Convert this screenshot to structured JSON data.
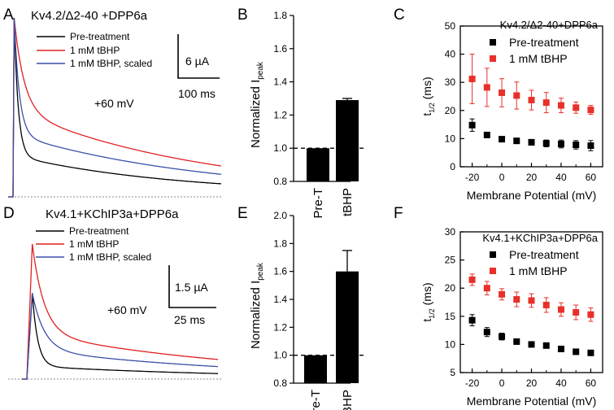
{
  "panels": {
    "A": {
      "letter": "A",
      "title": "Kv4.2/Δ2-40 +DPP6a",
      "voltage": "+60 mV",
      "scale_y": "6 µA",
      "scale_x": "100 ms"
    },
    "B": {
      "letter": "B"
    },
    "C": {
      "letter": "C"
    },
    "D": {
      "letter": "D",
      "title": "Kv4.1+KChIP3a+DPP6a",
      "voltage": "+60 mV",
      "scale_y": "1.5 µA",
      "scale_x": "25 ms"
    },
    "E": {
      "letter": "E"
    },
    "F": {
      "letter": "F"
    }
  },
  "legend_traces": [
    "Pre-treatment",
    "1 mM tBHP",
    "1 mM tBHP, scaled"
  ],
  "colors": {
    "pre": "#000000",
    "tbhp": "#e02020",
    "scaled": "#3a4fa8",
    "red_marker": "#e8302a"
  },
  "chart_data": [
    {
      "panel": "A",
      "type": "line",
      "series": [
        {
          "name": "Pre-treatment",
          "color": "#000000",
          "peak": 24,
          "fast_tau": 7,
          "fast_frac": 0.78,
          "slow_tau": 280,
          "base": 0.3
        },
        {
          "name": "1 mM tBHP",
          "color": "#e02020",
          "peak": 24,
          "fast_tau": 17,
          "fast_frac": 0.52,
          "slow_tau": 330,
          "base": 0.3
        },
        {
          "name": "1 mM tBHP, scaled",
          "color": "#3a4fa8",
          "peak": 24,
          "fast_tau": 9,
          "fast_frac": 0.66,
          "slow_tau": 330,
          "base": 0.3
        }
      ],
      "duration_ms": 360
    },
    {
      "panel": "B",
      "type": "bar",
      "categories": [
        "Pre-T",
        "tBHP"
      ],
      "values": [
        1.0,
        1.29
      ],
      "errors": [
        0.0,
        0.01
      ],
      "ylabel": "Normalized I",
      "ylabel_sub": "peak",
      "ylim": [
        0.8,
        1.8
      ],
      "yticks": [
        "0.8",
        "1.0",
        "1.2",
        "1.4",
        "1.6",
        "1.8"
      ],
      "reference_line": 1.0
    },
    {
      "panel": "C",
      "type": "scatter",
      "title": "Kv4.2/Δ2-40+DPP6a",
      "x": [
        -20,
        -10,
        0,
        10,
        20,
        30,
        40,
        50,
        60
      ],
      "series": [
        {
          "name": "Pre-treatment",
          "color": "#000000",
          "values": [
            14.8,
            11.3,
            9.8,
            9.2,
            8.7,
            8.3,
            8.1,
            7.8,
            7.5
          ],
          "errors": [
            2.2,
            0.8,
            0.8,
            0.9,
            1.0,
            1.2,
            1.4,
            1.5,
            1.8
          ]
        },
        {
          "name": "1 mM tBHP",
          "color": "#e8302a",
          "values": [
            31.2,
            28.2,
            26.3,
            25.3,
            23.7,
            22.8,
            21.8,
            21.0,
            20.2
          ],
          "errors": [
            8.8,
            6.8,
            5.0,
            4.8,
            3.5,
            3.6,
            2.6,
            2.0,
            1.6
          ]
        }
      ],
      "xlabel": "Membrane Potential (mV)",
      "ylabel": "t",
      "ylabel_sub": "1/2",
      "ylabel_unit": " (ms)",
      "xlim": [
        -28,
        68
      ],
      "ylim": [
        0,
        50
      ],
      "xticks": [
        "-20",
        "0",
        "20",
        "40",
        "60"
      ],
      "yticks": [
        "0",
        "10",
        "20",
        "30",
        "40",
        "50"
      ]
    },
    {
      "panel": "D",
      "type": "line",
      "series": [
        {
          "name": "Pre-treatment",
          "color": "#000000",
          "peak": 8.6,
          "fast_tau": 3.0,
          "fast_frac": 0.85,
          "slow_tau": 120,
          "base": 0.0
        },
        {
          "name": "1 mM tBHP",
          "color": "#e02020",
          "peak": 13.5,
          "fast_tau": 6.5,
          "fast_frac": 0.66,
          "slow_tau": 120,
          "base": 0.0
        },
        {
          "name": "1 mM tBHP, scaled",
          "color": "#3a4fa8",
          "peak": 8.6,
          "fast_tau": 6.5,
          "fast_frac": 0.66,
          "slow_tau": 120,
          "base": 0.0
        }
      ],
      "duration_ms": 105
    },
    {
      "panel": "E",
      "type": "bar",
      "categories": [
        "Pre-T",
        "tBHP"
      ],
      "values": [
        1.0,
        1.6
      ],
      "errors": [
        0.0,
        0.15
      ],
      "ylabel": "Normalized I",
      "ylabel_sub": "peak",
      "ylim": [
        0.8,
        2.0
      ],
      "yticks": [
        "0.8",
        "1.0",
        "1.2",
        "1.4",
        "1.6",
        "1.8",
        "2.0"
      ],
      "reference_line": 1.0
    },
    {
      "panel": "F",
      "type": "scatter",
      "title": "Kv4.1+KChIP3a+DPP6a",
      "x": [
        -20,
        -10,
        0,
        10,
        20,
        30,
        40,
        50,
        60
      ],
      "series": [
        {
          "name": "Pre-treatment",
          "color": "#000000",
          "values": [
            14.3,
            12.2,
            11.4,
            10.5,
            10.0,
            9.8,
            9.2,
            8.7,
            8.5
          ],
          "errors": [
            1.0,
            0.8,
            0.6,
            0.4,
            0.3,
            0.3,
            0.3,
            0.3,
            0.3
          ]
        },
        {
          "name": "1 mM tBHP",
          "color": "#e8302a",
          "values": [
            21.5,
            20.0,
            18.9,
            18.0,
            17.8,
            17.0,
            16.2,
            15.7,
            15.3
          ],
          "errors": [
            1.0,
            1.2,
            1.0,
            1.3,
            1.2,
            1.3,
            1.2,
            1.3,
            1.2
          ]
        }
      ],
      "xlabel": "Membrane Potential (mV)",
      "ylabel": "t",
      "ylabel_sub": "1/2",
      "ylabel_unit": " (ms)",
      "xlim": [
        -28,
        68
      ],
      "ylim": [
        5,
        30
      ],
      "xticks": [
        "-20",
        "0",
        "20",
        "40",
        "60"
      ],
      "yticks": [
        "5",
        "10",
        "15",
        "20",
        "25",
        "30"
      ]
    }
  ]
}
